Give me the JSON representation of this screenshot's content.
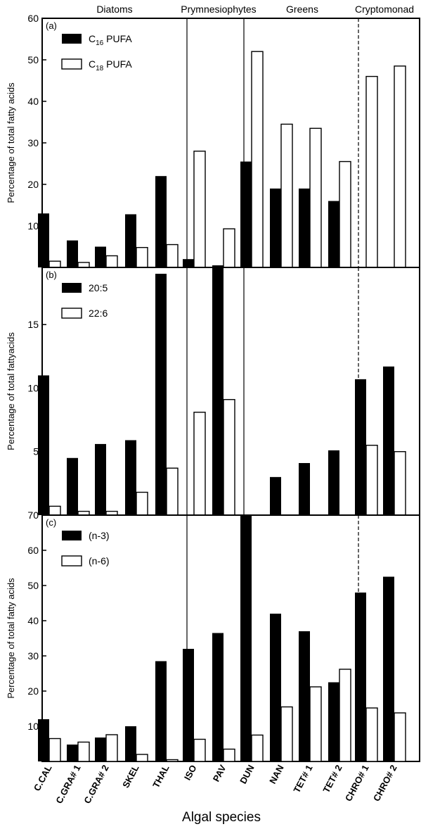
{
  "groups": [
    "Diatoms",
    "Prymnesiophytes",
    "Greens",
    "Cryptomonad"
  ],
  "xlabel": "Algal species",
  "chart_data": [
    {
      "type": "bar",
      "panel": "(a)",
      "ylabel": "Percentage of total fatty acids",
      "ylim": [
        0,
        60
      ],
      "yticks": [
        10,
        20,
        30,
        40,
        50,
        60
      ],
      "legend_position": "top-left",
      "categories": [
        "C.CAL",
        "C.GRA#1",
        "C.GRA#2",
        "SKEL",
        "THAL",
        "ISO",
        "PAV",
        "DUN",
        "NAN",
        "TET#1",
        "TET#2",
        "CHRO#1",
        "CHRO#2"
      ],
      "series": [
        {
          "name": "C16 PUFA",
          "name_main": "C",
          "name_sub": "16",
          "name_rest": " PUFA",
          "fill": "dark",
          "values": [
            13,
            6.5,
            5,
            12.8,
            22,
            2,
            0.5,
            25.5,
            19,
            19,
            16,
            0,
            0
          ]
        },
        {
          "name": "C18 PUFA",
          "name_main": "C",
          "name_sub": "18",
          "name_rest": " PUFA",
          "fill": "light",
          "values": [
            1.5,
            1.2,
            2.8,
            4.8,
            5.5,
            28,
            9.3,
            52,
            34.5,
            33.5,
            25.5,
            46,
            48.5
          ]
        }
      ]
    },
    {
      "type": "bar",
      "panel": "(b)",
      "ylabel": "Percentage of total fattyacids",
      "ylim": [
        0,
        19.5
      ],
      "yticks": [
        5,
        10,
        15
      ],
      "legend_position": "top-left",
      "categories": [
        "C.CAL",
        "C.GRA#1",
        "C.GRA#2",
        "SKEL",
        "THAL",
        "ISO",
        "PAV",
        "DUN",
        "NAN",
        "TET#1",
        "TET#2",
        "CHRO#1",
        "CHRO#2"
      ],
      "series": [
        {
          "name": "20:5",
          "fill": "dark",
          "values": [
            11,
            4.5,
            5.6,
            5.9,
            19,
            0,
            19.5,
            0,
            3,
            4.1,
            5.1,
            10.7,
            11.7
          ]
        },
        {
          "name": "22:6",
          "fill": "light",
          "values": [
            0.7,
            0.3,
            0.3,
            1.8,
            3.7,
            8.1,
            9.1,
            0,
            0,
            0,
            0,
            5.5,
            5
          ]
        }
      ]
    },
    {
      "type": "bar",
      "panel": "(c)",
      "ylabel": "Percentage of total fatty acids",
      "ylim": [
        0,
        70
      ],
      "yticks": [
        10,
        20,
        30,
        40,
        50,
        60,
        70
      ],
      "legend_position": "top-left",
      "categories": [
        "C.CAL",
        "C.GRA#1",
        "C.GRA#2",
        "SKEL",
        "THAL",
        "ISO",
        "PAV",
        "DUN",
        "NAN",
        "TET#1",
        "TET#2",
        "CHRO#1",
        "CHRO#2"
      ],
      "category_labels": [
        "C.CAL",
        "C.GRA# 1",
        "C.GRA# 2",
        "SKEL",
        "THAL",
        "ISO",
        "PAV",
        "DUN",
        "NAN",
        "TET# 1",
        "TET# 2",
        "CHRO# 1",
        "CHRO# 2"
      ],
      "series": [
        {
          "name": "(n-3)",
          "fill": "dark",
          "values": [
            12,
            4.8,
            6.8,
            10,
            28.5,
            32,
            36.5,
            70,
            42,
            37,
            22.5,
            48,
            52.5
          ]
        },
        {
          "name": "(n-6)",
          "fill": "light",
          "values": [
            6.5,
            5.5,
            7.6,
            2,
            0.5,
            6.3,
            3.5,
            7.5,
            15.5,
            21.2,
            26.2,
            15.2,
            13.8
          ]
        }
      ]
    }
  ]
}
